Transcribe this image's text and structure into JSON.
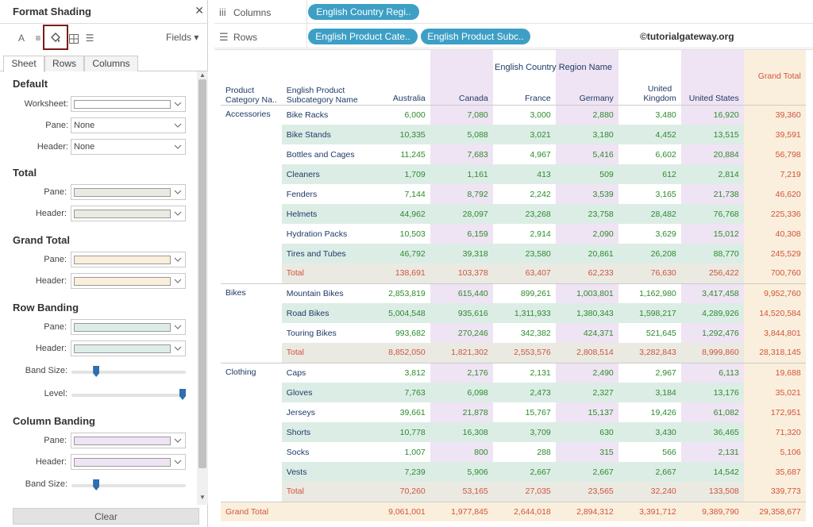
{
  "panel": {
    "title": "Format Shading",
    "fields_label": "Fields",
    "tabs": [
      "Sheet",
      "Rows",
      "Columns"
    ],
    "clear_label": "Clear",
    "sections": {
      "default": {
        "title": "Default",
        "worksheet_label": "Worksheet:",
        "pane_label": "Pane:",
        "pane_value": "None",
        "header_label": "Header:",
        "header_value": "None"
      },
      "total": {
        "title": "Total",
        "pane_label": "Pane:",
        "header_label": "Header:",
        "color": "#eaeae3"
      },
      "grand_total": {
        "title": "Grand Total",
        "pane_label": "Pane:",
        "header_label": "Header:",
        "color": "#faefdc"
      },
      "row_banding": {
        "title": "Row Banding",
        "pane_label": "Pane:",
        "header_label": "Header:",
        "band_size_label": "Band Size:",
        "level_label": "Level:",
        "color": "#dcede6",
        "band_size": 0.2,
        "level": 1.0
      },
      "column_banding": {
        "title": "Column Banding",
        "pane_label": "Pane:",
        "header_label": "Header:",
        "band_size_label": "Band Size:",
        "color": "#efe4f3",
        "band_size": 0.2
      }
    }
  },
  "shelves": {
    "columns_label": "Columns",
    "rows_label": "Rows",
    "columns_pills": [
      "English Country Regi.."
    ],
    "rows_pills": [
      "English Product Cate..",
      "English Product Subc.."
    ]
  },
  "watermark": "©tutorialgateway.org",
  "table": {
    "col_group": "English Country Region Name",
    "row_headers": [
      "Product\nCategory Na..",
      "English Product\nSubcategory Name"
    ],
    "columns": [
      "Australia",
      "Canada",
      "France",
      "Germany",
      "United\nKingdom",
      "United States",
      "Grand Total"
    ],
    "groups": [
      {
        "category": "Accessories",
        "rows": [
          {
            "sub": "Bike Racks",
            "v": [
              "6,000",
              "7,080",
              "3,000",
              "2,880",
              "3,480",
              "16,920",
              "39,360"
            ]
          },
          {
            "sub": "Bike Stands",
            "v": [
              "10,335",
              "5,088",
              "3,021",
              "3,180",
              "4,452",
              "13,515",
              "39,591"
            ]
          },
          {
            "sub": "Bottles and Cages",
            "v": [
              "11,245",
              "7,683",
              "4,967",
              "5,416",
              "6,602",
              "20,884",
              "56,798"
            ]
          },
          {
            "sub": "Cleaners",
            "v": [
              "1,709",
              "1,161",
              "413",
              "509",
              "612",
              "2,814",
              "7,219"
            ]
          },
          {
            "sub": "Fenders",
            "v": [
              "7,144",
              "8,792",
              "2,242",
              "3,539",
              "3,165",
              "21,738",
              "46,620"
            ]
          },
          {
            "sub": "Helmets",
            "v": [
              "44,962",
              "28,097",
              "23,268",
              "23,758",
              "28,482",
              "76,768",
              "225,336"
            ]
          },
          {
            "sub": "Hydration Packs",
            "v": [
              "10,503",
              "6,159",
              "2,914",
              "2,090",
              "3,629",
              "15,012",
              "40,308"
            ]
          },
          {
            "sub": "Tires and Tubes",
            "v": [
              "46,792",
              "39,318",
              "23,580",
              "20,861",
              "26,208",
              "88,770",
              "245,529"
            ]
          },
          {
            "sub": "Total",
            "total": true,
            "v": [
              "138,691",
              "103,378",
              "63,407",
              "62,233",
              "76,630",
              "256,422",
              "700,760"
            ]
          }
        ]
      },
      {
        "category": "Bikes",
        "rows": [
          {
            "sub": "Mountain Bikes",
            "v": [
              "2,853,819",
              "615,440",
              "899,261",
              "1,003,801",
              "1,162,980",
              "3,417,458",
              "9,952,760"
            ]
          },
          {
            "sub": "Road Bikes",
            "v": [
              "5,004,548",
              "935,616",
              "1,311,933",
              "1,380,343",
              "1,598,217",
              "4,289,926",
              "14,520,584"
            ]
          },
          {
            "sub": "Touring Bikes",
            "v": [
              "993,682",
              "270,246",
              "342,382",
              "424,371",
              "521,645",
              "1,292,476",
              "3,844,801"
            ]
          },
          {
            "sub": "Total",
            "total": true,
            "v": [
              "8,852,050",
              "1,821,302",
              "2,553,576",
              "2,808,514",
              "3,282,843",
              "8,999,860",
              "28,318,145"
            ]
          }
        ]
      },
      {
        "category": "Clothing",
        "rows": [
          {
            "sub": "Caps",
            "v": [
              "3,812",
              "2,176",
              "2,131",
              "2,490",
              "2,967",
              "6,113",
              "19,688"
            ]
          },
          {
            "sub": "Gloves",
            "v": [
              "7,763",
              "6,098",
              "2,473",
              "2,327",
              "3,184",
              "13,176",
              "35,021"
            ]
          },
          {
            "sub": "Jerseys",
            "v": [
              "39,661",
              "21,878",
              "15,767",
              "15,137",
              "19,426",
              "61,082",
              "172,951"
            ]
          },
          {
            "sub": "Shorts",
            "v": [
              "10,778",
              "16,308",
              "3,709",
              "630",
              "3,430",
              "36,465",
              "71,320"
            ]
          },
          {
            "sub": "Socks",
            "v": [
              "1,007",
              "800",
              "288",
              "315",
              "566",
              "2,131",
              "5,106"
            ]
          },
          {
            "sub": "Vests",
            "v": [
              "7,239",
              "5,906",
              "2,667",
              "2,667",
              "2,667",
              "14,542",
              "35,687"
            ]
          },
          {
            "sub": "Total",
            "total": true,
            "v": [
              "70,260",
              "53,165",
              "27,035",
              "23,565",
              "32,240",
              "133,508",
              "339,773"
            ]
          }
        ]
      }
    ],
    "grand_total": {
      "label": "Grand Total",
      "v": [
        "9,061,001",
        "1,977,845",
        "2,644,018",
        "2,894,312",
        "3,391,712",
        "9,389,790",
        "29,358,677"
      ]
    }
  }
}
